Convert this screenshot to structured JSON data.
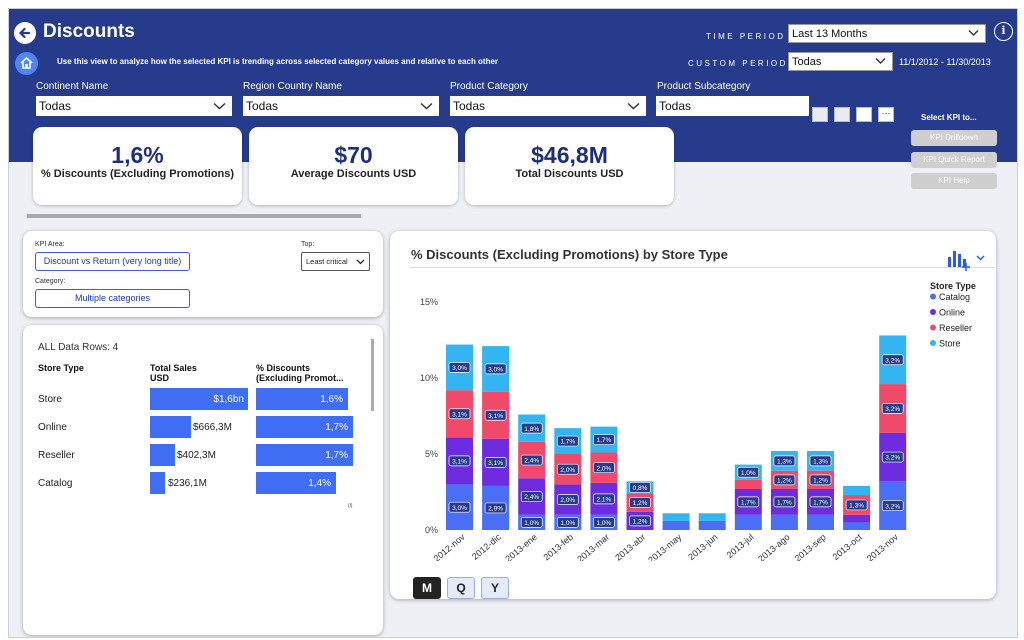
{
  "header": {
    "title": "Discounts",
    "description": "Use this view to analyze how the selected KPI is trending across selected category values and relative to each other",
    "time_period_label": "TIME PERIOD",
    "time_period_value": "Last 13 Months",
    "custom_period_label": "CUSTOM PERIOD",
    "custom_period_value": "Todas",
    "date_range": "11/1/2012 - 11/30/2013",
    "info": "i"
  },
  "filters": [
    {
      "label": "Continent Name",
      "value": "Todas"
    },
    {
      "label": "Region Country Name",
      "value": "Todas"
    },
    {
      "label": "Product Category",
      "value": "Todas"
    },
    {
      "label": "Product Subcategory",
      "value": "Todas"
    }
  ],
  "kpi_select": {
    "title": "Select KPI to...",
    "buttons": [
      "KPI Drilldown",
      "KPI Quick Report",
      "KPI Help"
    ]
  },
  "cards": [
    {
      "value": "1,6%",
      "label": "% Discounts (Excluding Promotions)"
    },
    {
      "value": "$70",
      "label": "Average Discounts USD"
    },
    {
      "value": "$46,8M",
      "label": "Total Discounts USD"
    }
  ],
  "controls": {
    "kpi_area_label": "KPI Area:",
    "kpi_area_value": "Discount vs Return (very long title)",
    "top_label": "Top:",
    "top_value": "Least critical",
    "category_label": "Category:",
    "category_value": "Multiple categories"
  },
  "table": {
    "title": "ALL Data Rows: 4",
    "headers": [
      "Store Type",
      "Total Sales USD",
      "% Discounts (Excluding Promot..."
    ],
    "rows": [
      {
        "store": "Store",
        "sales": "$1,6bn",
        "sales_value": 1.6,
        "pct": "1,6%",
        "pct_value": 1.6
      },
      {
        "store": "Online",
        "sales": "$666,3M",
        "sales_value": 0.6663,
        "pct": "1,7%",
        "pct_value": 1.7
      },
      {
        "store": "Reseller",
        "sales": "$402,3M",
        "sales_value": 0.4023,
        "pct": "1,7%",
        "pct_value": 1.7
      },
      {
        "store": "Catalog",
        "sales": "$236,1M",
        "sales_value": 0.2361,
        "pct": "1,4%",
        "pct_value": 1.4
      }
    ],
    "footnote": "(i)"
  },
  "chart_tabs": [
    "M",
    "Q",
    "Y"
  ],
  "chart_data": {
    "type": "bar",
    "stacked": true,
    "title": "% Discounts (Excluding Promotions) by Store Type",
    "legend_title": "Store Type",
    "legend_position": "top-right",
    "ylim": [
      0,
      15
    ],
    "yticks": [
      "0%",
      "5%",
      "10%",
      "15%"
    ],
    "categories": [
      "2012-nov",
      "2012-dic",
      "2013-ene",
      "2013-feb",
      "2013-mar",
      "2013-abr",
      "2013-may",
      "2013-jun",
      "2013-jul",
      "2013-ago",
      "2013-sep",
      "2013-oct",
      "2013-nov"
    ],
    "series": [
      {
        "name": "Catalog",
        "color": "#4a6ef5",
        "values": [
          3.0,
          2.9,
          1.0,
          1.0,
          1.0,
          0.0,
          0.6,
          0.6,
          1.0,
          1.0,
          1.0,
          0.5,
          3.2
        ]
      },
      {
        "name": "Online",
        "color": "#6d2ce0",
        "values": [
          3.1,
          3.1,
          2.4,
          2.0,
          2.1,
          1.2,
          0.0,
          0.0,
          1.7,
          1.7,
          1.7,
          0.5,
          3.2
        ]
      },
      {
        "name": "Reseller",
        "color": "#f0496a",
        "values": [
          3.1,
          3.1,
          2.4,
          2.0,
          2.0,
          1.2,
          0.0,
          0.0,
          0.6,
          1.2,
          1.2,
          1.3,
          3.2
        ]
      },
      {
        "name": "Store",
        "color": "#32b5f0",
        "values": [
          3.0,
          3.0,
          1.8,
          1.7,
          1.7,
          0.8,
          0.5,
          0.5,
          1.0,
          1.3,
          1.3,
          0.6,
          3.2
        ]
      }
    ],
    "labels": [
      [
        "3,0%",
        "3,1%",
        "3,1%",
        "3,0%"
      ],
      [
        "2,9%",
        "3,1%",
        "3,1%",
        "3,0%"
      ],
      [
        "1,0%",
        "2,4%",
        "2,4%",
        "1,8%"
      ],
      [
        "1,0%",
        "2,0%",
        "2,0%",
        "1,7%"
      ],
      [
        "1,0%",
        "2,1%",
        "2,0%",
        "1,7%"
      ],
      [
        "",
        "1,2%",
        "1,2%",
        "0,8%"
      ],
      [
        "",
        "",
        "",
        ""
      ],
      [
        "",
        "",
        "",
        ""
      ],
      [
        "",
        "1,7%",
        "",
        "1,0%"
      ],
      [
        "",
        "1,7%",
        "1,2%",
        "1,3%"
      ],
      [
        "",
        "1,7%",
        "1,2%",
        "1,3%"
      ],
      [
        "",
        "",
        "1,3%",
        ""
      ],
      [
        "3,2%",
        "3,2%",
        "3,2%",
        "3,2%"
      ]
    ]
  }
}
